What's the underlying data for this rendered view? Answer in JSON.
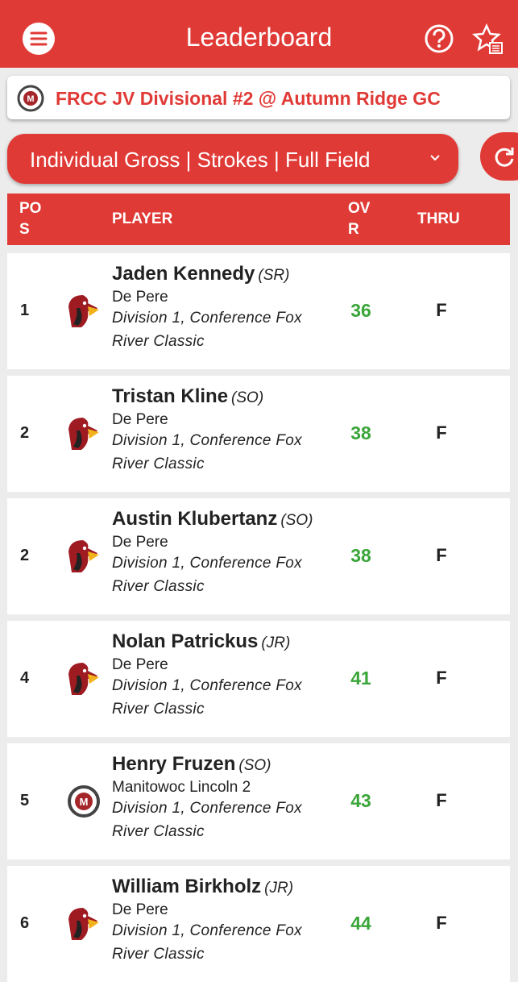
{
  "header": {
    "title": "Leaderboard"
  },
  "event": {
    "name": "FRCC JV Divisional #2 @ Autumn Ridge GC"
  },
  "filter": {
    "label": "Individual Gross | Strokes | Full Field"
  },
  "table": {
    "columns": [
      "POS",
      "PLAYER",
      "OVR",
      "THRU"
    ],
    "rows": [
      {
        "pos": 1,
        "name": "Jaden Kennedy",
        "grade": "(SR)",
        "school": "De Pere",
        "division": "Division 1, Conference Fox River Classic",
        "ovr": 36,
        "thru": "F"
      },
      {
        "pos": 2,
        "name": "Tristan Kline",
        "grade": "(SO)",
        "school": "De Pere",
        "division": "Division 1, Conference Fox River Classic",
        "ovr": 38,
        "thru": "F"
      },
      {
        "pos": 2,
        "name": "Austin Klubertanz",
        "grade": "(SO)",
        "school": "De Pere",
        "division": "Division 1, Conference Fox River Classic",
        "ovr": 38,
        "thru": "F"
      },
      {
        "pos": 4,
        "name": "Nolan Patrickus",
        "grade": "(JR)",
        "school": "De Pere",
        "division": "Division 1, Conference Fox River Classic",
        "ovr": 41,
        "thru": "F"
      },
      {
        "pos": 5,
        "name": "Henry Fruzen",
        "grade": "(SO)",
        "school": "Manitowoc Lincoln 2",
        "division": "Division 1, Conference Fox River Classic",
        "ovr": 43,
        "thru": "F"
      },
      {
        "pos": 6,
        "name": "William Birkholz",
        "grade": "(JR)",
        "school": "De Pere",
        "division": "Division 1, Conference Fox River Classic",
        "ovr": 44,
        "thru": "F"
      }
    ]
  }
}
